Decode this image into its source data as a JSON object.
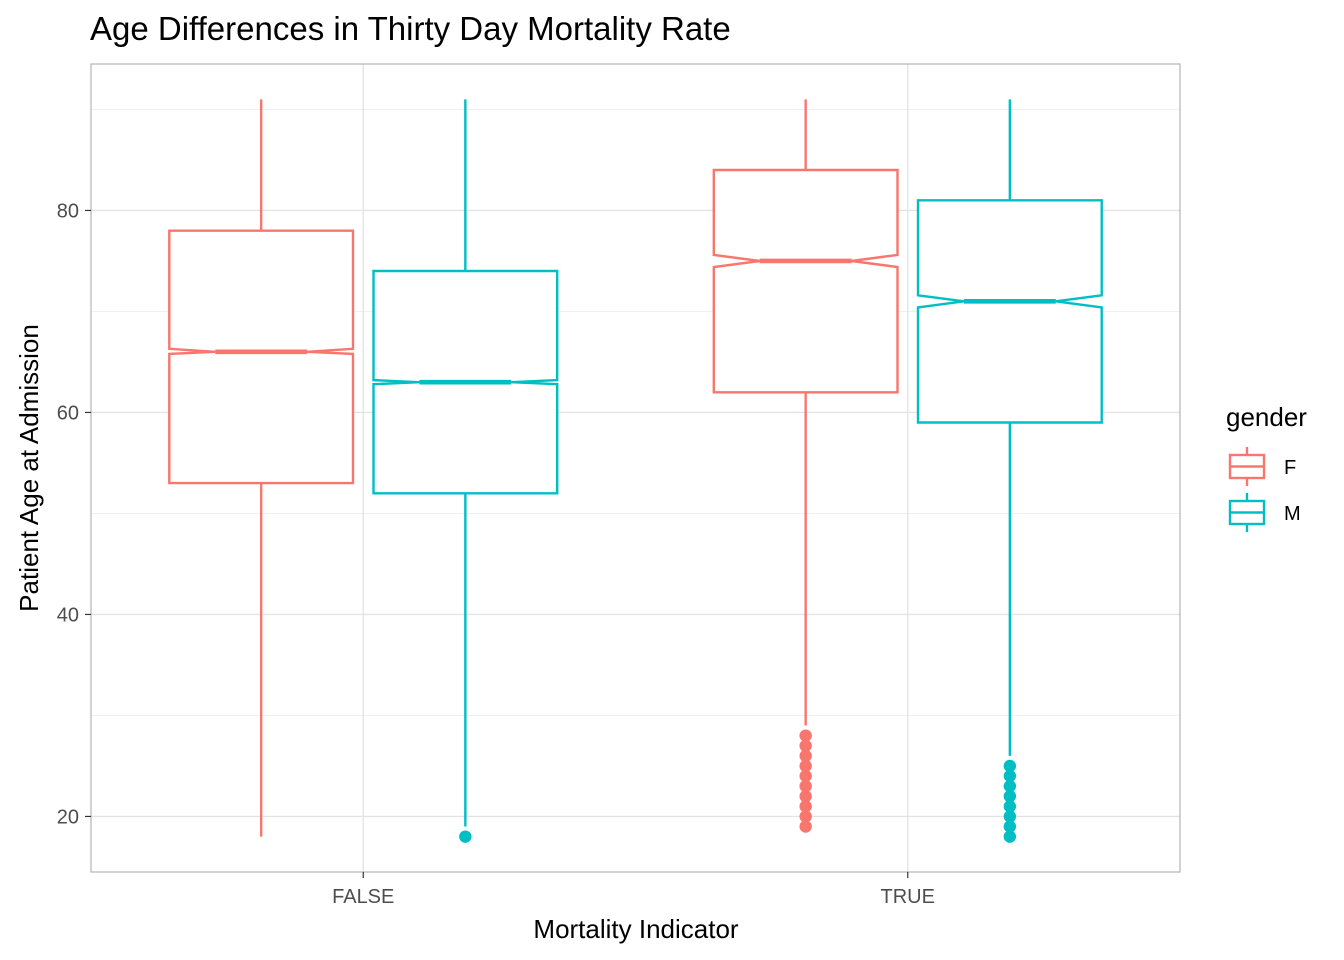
{
  "chart_data": {
    "type": "boxplot",
    "title": "Age Differences in Thirty Day Mortality Rate",
    "xlabel": "Mortality Indicator",
    "ylabel": "Patient Age at Admission",
    "categories": [
      "FALSE",
      "TRUE"
    ],
    "ylim": [
      14.5,
      94.5
    ],
    "yticks": [
      20,
      40,
      60,
      80
    ],
    "notched": true,
    "grid": true,
    "legend": {
      "title": "gender",
      "position": "right"
    },
    "series": [
      {
        "name": "F",
        "color": "#F8766D",
        "boxes": [
          {
            "category": "FALSE",
            "min": 18,
            "q1": 53,
            "median": 66,
            "q3": 78,
            "max": 91,
            "notch_low": 65.8,
            "notch_high": 66.3,
            "outliers": []
          },
          {
            "category": "TRUE",
            "min": 29,
            "q1": 62,
            "median": 75,
            "q3": 84,
            "max": 91,
            "notch_low": 74.4,
            "notch_high": 75.6,
            "outliers": [
              19,
              20,
              21,
              22,
              23,
              24,
              25,
              26,
              27,
              28
            ]
          }
        ]
      },
      {
        "name": "M",
        "color": "#00BFC4",
        "boxes": [
          {
            "category": "FALSE",
            "min": 19,
            "q1": 52,
            "median": 63,
            "q3": 74,
            "max": 91,
            "notch_low": 62.8,
            "notch_high": 63.2,
            "outliers": [
              18
            ]
          },
          {
            "category": "TRUE",
            "min": 26,
            "q1": 59,
            "median": 71,
            "q3": 81,
            "max": 91,
            "notch_low": 70.4,
            "notch_high": 71.6,
            "outliers": [
              18,
              19,
              20,
              21,
              22,
              23,
              24,
              25
            ]
          }
        ]
      }
    ]
  }
}
